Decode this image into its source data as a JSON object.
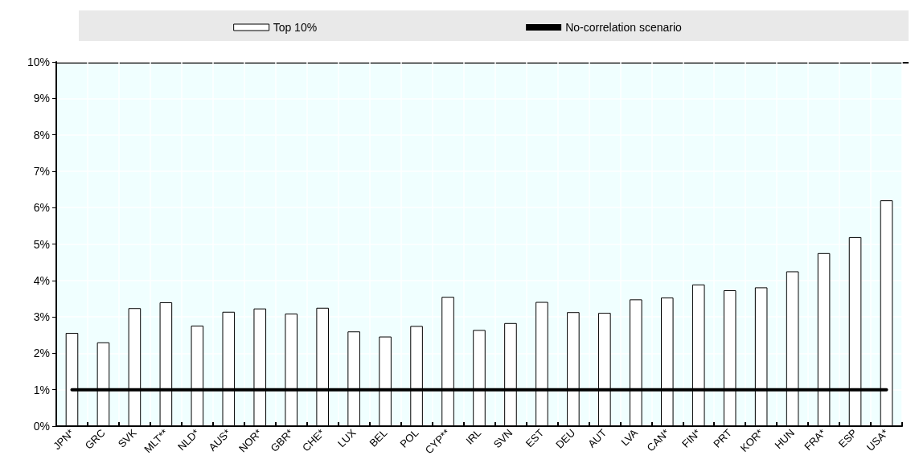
{
  "chart_data": {
    "type": "bar",
    "categories": [
      "JPN*",
      "GRC",
      "SVK",
      "MLT**",
      "NLD*",
      "AUS*",
      "NOR*",
      "GBR*",
      "CHE*",
      "LUX",
      "BEL",
      "POL",
      "CYP**",
      "IRL",
      "SVN",
      "EST",
      "DEU",
      "AUT",
      "LVA",
      "CAN*",
      "FIN*",
      "PRT",
      "KOR*",
      "HUN",
      "FRA*",
      "ESP",
      "USA*"
    ],
    "series": [
      {
        "name": "Top 10%",
        "color": "#ffffff",
        "values": [
          2.56,
          2.3,
          3.24,
          3.4,
          2.76,
          3.14,
          3.23,
          3.09,
          3.25,
          2.6,
          2.46,
          2.75,
          3.55,
          2.64,
          2.83,
          3.41,
          3.13,
          3.11,
          3.48,
          3.53,
          3.89,
          3.73,
          3.81,
          4.25,
          4.75,
          5.19,
          6.2
        ]
      },
      {
        "name": "No-correlation scenario",
        "type": "line",
        "color": "#000000",
        "values": [
          1,
          1,
          1,
          1,
          1,
          1,
          1,
          1,
          1,
          1,
          1,
          1,
          1,
          1,
          1,
          1,
          1,
          1,
          1,
          1,
          1,
          1,
          1,
          1,
          1,
          1,
          1
        ]
      }
    ],
    "ylim": [
      0,
      10
    ],
    "yticks": [
      {
        "value": 0,
        "label": "0%"
      },
      {
        "value": 1,
        "label": "1%"
      },
      {
        "value": 2,
        "label": "2%"
      },
      {
        "value": 3,
        "label": "3%"
      },
      {
        "value": 4,
        "label": "4%"
      },
      {
        "value": 5,
        "label": "5%"
      },
      {
        "value": 6,
        "label": "6%"
      },
      {
        "value": 7,
        "label": "7%"
      },
      {
        "value": 8,
        "label": "8%"
      },
      {
        "value": 9,
        "label": "9%"
      },
      {
        "value": 10,
        "label": "10%"
      }
    ],
    "grid": true,
    "legend": "top",
    "marker": "none"
  }
}
